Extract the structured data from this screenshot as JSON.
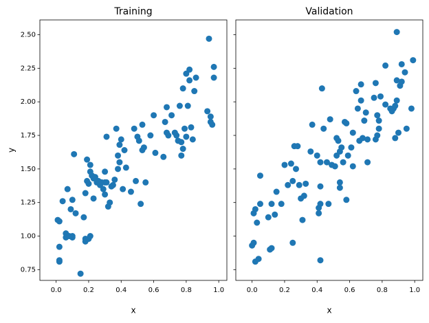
{
  "chart_data": [
    {
      "type": "scatter",
      "title": "Training",
      "xlabel": "x",
      "ylabel": "y",
      "color": "#1f77b4",
      "xlim": [
        -0.1,
        1.05
      ],
      "ylim": [
        0.67,
        2.61
      ],
      "xticks": [
        {
          "value": 0,
          "label": "0.0"
        },
        {
          "value": 0.2,
          "label": "0.2"
        },
        {
          "value": 0.4,
          "label": "0.4"
        },
        {
          "value": 0.6,
          "label": "0.6"
        },
        {
          "value": 0.8,
          "label": "0.8"
        },
        {
          "value": 1,
          "label": "1.0"
        }
      ],
      "yticks": [
        0.75,
        {
          "value": 1,
          "label": "1.00"
        },
        1.25,
        {
          "value": 1.5,
          "label": "1.50"
        },
        1.75,
        {
          "value": 2,
          "label": "2.00"
        },
        2.25,
        {
          "value": 2.5,
          "label": "2.50"
        }
      ],
      "x": [
        0.01,
        0.02,
        0.02,
        0.02,
        0.02,
        0.04,
        0.06,
        0.06,
        0.07,
        0.08,
        0.09,
        0.1,
        0.1,
        0.1,
        0.11,
        0.12,
        0.15,
        0.17,
        0.18,
        0.18,
        0.18,
        0.19,
        0.19,
        0.2,
        0.2,
        0.21,
        0.21,
        0.21,
        0.22,
        0.23,
        0.23,
        0.24,
        0.25,
        0.26,
        0.27,
        0.28,
        0.29,
        0.3,
        0.3,
        0.3,
        0.31,
        0.31,
        0.32,
        0.33,
        0.34,
        0.35,
        0.36,
        0.37,
        0.38,
        0.38,
        0.39,
        0.39,
        0.4,
        0.41,
        0.42,
        0.43,
        0.46,
        0.48,
        0.49,
        0.5,
        0.51,
        0.52,
        0.53,
        0.53,
        0.54,
        0.55,
        0.58,
        0.6,
        0.61,
        0.66,
        0.67,
        0.68,
        0.68,
        0.69,
        0.71,
        0.73,
        0.74,
        0.75,
        0.76,
        0.77,
        0.77,
        0.78,
        0.78,
        0.79,
        0.8,
        0.8,
        0.81,
        0.82,
        0.82,
        0.83,
        0.84,
        0.85,
        0.86,
        0.93,
        0.94,
        0.95,
        0.95,
        0.96,
        0.97,
        0.97
      ],
      "values": [
        1.12,
        1.11,
        0.82,
        0.81,
        0.92,
        1.26,
        0.99,
        1.02,
        1.35,
        1.0,
        1.2,
        1.27,
        0.99,
        1.0,
        1.61,
        1.17,
        0.72,
        1.14,
        0.96,
        0.98,
        1.32,
        1.41,
        1.57,
        0.98,
        1.39,
        1.0,
        1.48,
        1.53,
        1.45,
        1.28,
        1.43,
        1.44,
        1.4,
        1.41,
        1.38,
        1.4,
        1.35,
        1.31,
        1.4,
        1.48,
        1.74,
        1.4,
        1.22,
        1.25,
        1.37,
        1.38,
        1.42,
        1.8,
        1.5,
        1.6,
        1.55,
        1.68,
        1.72,
        1.35,
        1.64,
        1.51,
        1.33,
        1.8,
        1.41,
        1.74,
        1.71,
        1.24,
        1.83,
        1.64,
        1.66,
        1.4,
        1.75,
        1.9,
        1.62,
        1.59,
        1.85,
        1.77,
        1.96,
        1.75,
        1.9,
        1.77,
        1.75,
        1.71,
        1.97,
        1.6,
        1.7,
        1.65,
        2.1,
        1.8,
        1.74,
        2.21,
        1.97,
        2.24,
        2.16,
        1.81,
        1.72,
        2.08,
        2.18,
        1.93,
        2.47,
        1.85,
        1.89,
        1.83,
        2.26,
        2.18
      ]
    },
    {
      "type": "scatter",
      "title": "Validation",
      "xlabel": "x",
      "color": "#1f77b4",
      "xlim": [
        -0.1,
        1.05
      ],
      "ylim": [
        0.67,
        2.61
      ],
      "xticks": [
        {
          "value": 0,
          "label": "0.0"
        },
        {
          "value": 0.2,
          "label": "0.2"
        },
        {
          "value": 0.4,
          "label": "0.4"
        },
        {
          "value": 0.6,
          "label": "0.6"
        },
        {
          "value": 0.8,
          "label": "0.8"
        },
        {
          "value": 1,
          "label": "1.0"
        }
      ],
      "x": [
        0.0,
        0.01,
        0.01,
        0.02,
        0.02,
        0.03,
        0.04,
        0.05,
        0.05,
        0.1,
        0.11,
        0.12,
        0.12,
        0.14,
        0.15,
        0.18,
        0.2,
        0.22,
        0.24,
        0.25,
        0.25,
        0.26,
        0.27,
        0.28,
        0.29,
        0.3,
        0.31,
        0.32,
        0.33,
        0.36,
        0.37,
        0.4,
        0.41,
        0.41,
        0.42,
        0.42,
        0.42,
        0.42,
        0.43,
        0.44,
        0.46,
        0.47,
        0.48,
        0.49,
        0.51,
        0.52,
        0.52,
        0.53,
        0.54,
        0.54,
        0.54,
        0.55,
        0.56,
        0.57,
        0.58,
        0.58,
        0.59,
        0.61,
        0.62,
        0.62,
        0.64,
        0.65,
        0.66,
        0.67,
        0.67,
        0.68,
        0.69,
        0.7,
        0.71,
        0.71,
        0.75,
        0.76,
        0.76,
        0.77,
        0.77,
        0.78,
        0.78,
        0.79,
        0.82,
        0.82,
        0.85,
        0.86,
        0.87,
        0.88,
        0.88,
        0.89,
        0.89,
        0.89,
        0.9,
        0.91,
        0.92,
        0.92,
        0.94,
        0.95,
        0.98,
        0.99
      ],
      "values": [
        0.93,
        0.95,
        1.17,
        1.2,
        0.81,
        1.1,
        0.83,
        1.45,
        1.24,
        1.14,
        0.9,
        0.91,
        1.24,
        1.16,
        1.33,
        1.24,
        1.53,
        1.38,
        1.54,
        0.95,
        1.41,
        1.67,
        1.5,
        1.67,
        1.38,
        1.28,
        1.12,
        1.3,
        1.39,
        1.63,
        1.83,
        1.6,
        1.17,
        1.21,
        0.82,
        1.24,
        1.37,
        1.55,
        2.1,
        1.8,
        1.55,
        1.24,
        1.87,
        1.53,
        1.52,
        1.6,
        1.73,
        1.71,
        1.36,
        1.4,
        1.63,
        1.66,
        1.55,
        1.85,
        1.27,
        1.84,
        1.6,
        1.66,
        1.52,
        1.77,
        2.08,
        1.95,
        1.71,
        2.01,
        2.13,
        1.73,
        1.86,
        1.92,
        1.55,
        1.72,
        2.03,
        1.72,
        2.14,
        1.9,
        1.75,
        1.86,
        1.8,
        2.04,
        2.27,
        1.98,
        1.95,
        1.93,
        1.95,
        1.73,
        1.97,
        2.16,
        2.52,
        2.01,
        1.77,
        2.12,
        2.28,
        2.15,
        2.22,
        1.8,
        1.95,
        2.31
      ]
    }
  ]
}
